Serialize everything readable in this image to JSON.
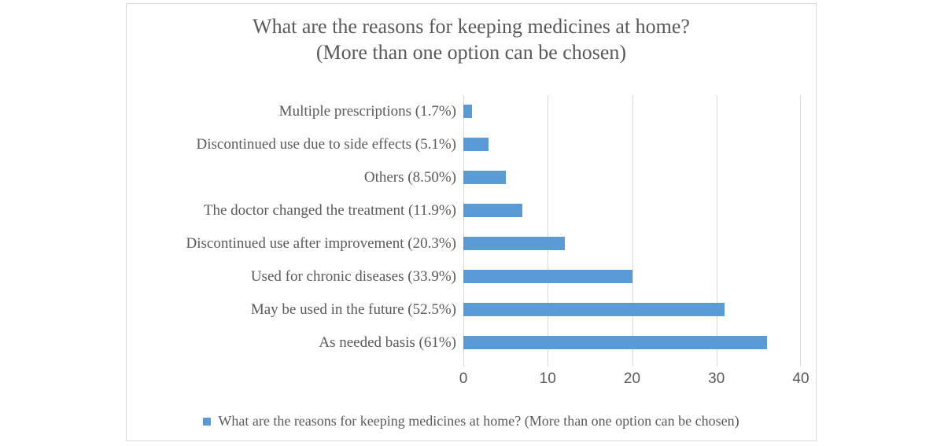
{
  "chart_data": {
    "type": "bar",
    "orientation": "horizontal",
    "title": "What are the reasons for keeping medicines at home? (More than one option can be chosen)",
    "title_line1": "What are the reasons for keeping medicines at home?",
    "title_line2": "(More than one option can be chosen)",
    "categories": [
      "Multiple prescriptions (1.7%)",
      "Discontinued use due to side effects (5.1%)",
      "Others (8.50%)",
      "The doctor changed the treatment (11.9%)",
      "Discontinued use after improvement (20.3%)",
      "Used for chronic diseases (33.9%)",
      "May be used in the future (52.5%)",
      "As needed basis (61%)"
    ],
    "values": [
      1,
      3,
      5,
      7,
      12,
      20,
      31,
      36
    ],
    "xlim": [
      0,
      40
    ],
    "xticks": [
      0,
      10,
      20,
      30,
      40
    ],
    "grid": true,
    "legend": {
      "position": "bottom",
      "label": "What are the reasons for keeping medicines at home? (More than one option can be chosen)"
    },
    "colors": {
      "bar": "#5b9bd5",
      "gridline": "#d9d9d9",
      "frame_border": "#d9d9d9",
      "text": "#595959"
    }
  }
}
